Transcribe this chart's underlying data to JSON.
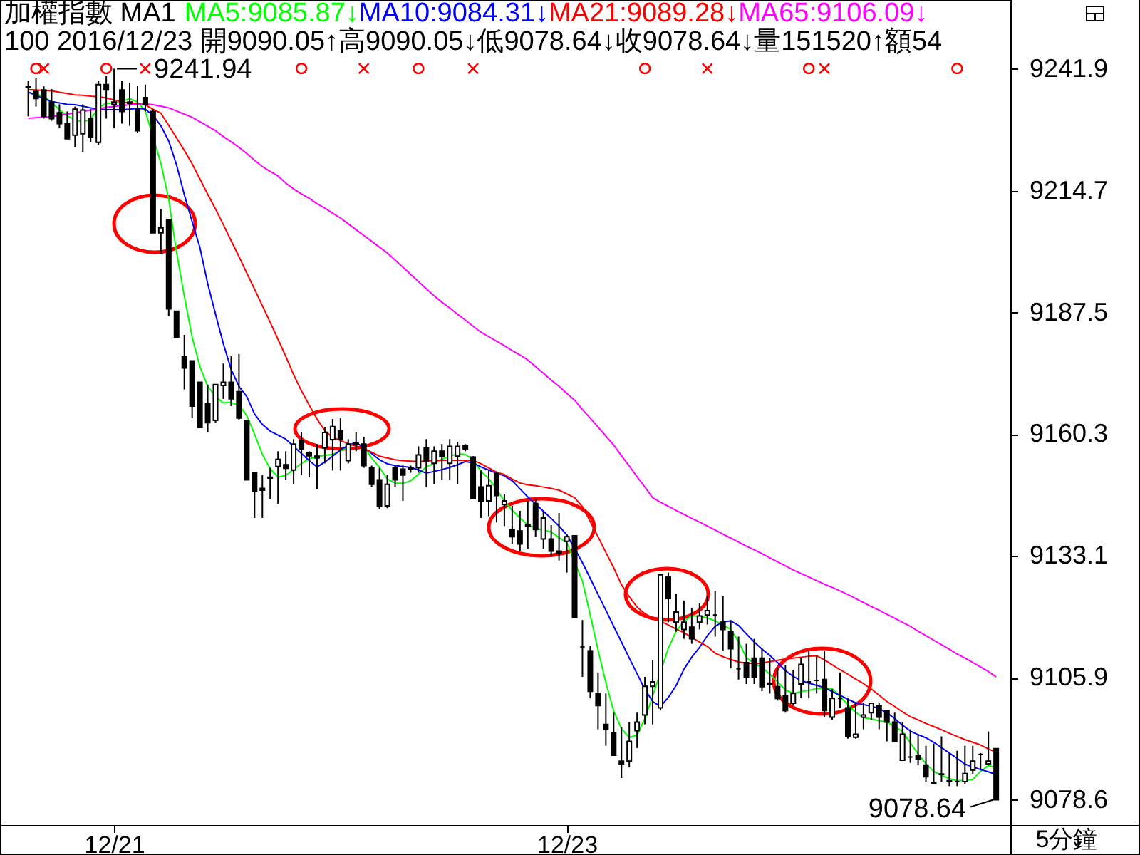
{
  "chart_data": {
    "type": "candlestick",
    "title": "加權指數 MA1",
    "subtitle": "100 2016/12/23 開9090.05↑高9090.05↓低9078.64↓收9078.64↓量151520↑額54",
    "xlabel": "5分鐘",
    "categories": [
      null,
      null,
      null,
      null,
      null,
      null,
      null,
      null,
      null,
      null,
      null,
      "12/21",
      null,
      null,
      null,
      null,
      null,
      null,
      null,
      null,
      null,
      null,
      null,
      null,
      null,
      null,
      null,
      null,
      null,
      null,
      null,
      null,
      null,
      null,
      null,
      null,
      null,
      null,
      null,
      null,
      null,
      null,
      null,
      null,
      null,
      null,
      null,
      null,
      null,
      null,
      null,
      null,
      null,
      null,
      null,
      null,
      null,
      null,
      null,
      null,
      null,
      null,
      null,
      null,
      null,
      null,
      null,
      null,
      null,
      "12/23",
      null,
      null,
      null,
      null,
      null,
      null,
      null,
      null,
      null,
      null,
      null,
      null,
      null,
      null,
      null,
      null,
      null,
      null,
      null,
      null,
      null,
      null,
      null,
      null,
      null,
      null,
      null,
      null,
      null,
      null,
      null,
      null,
      null,
      null,
      null,
      null,
      null,
      null,
      null,
      null,
      null,
      null,
      null,
      null,
      null,
      null,
      null,
      null,
      null,
      null,
      null,
      null,
      null,
      null,
      null
    ],
    "color": "#000000",
    "ohlc": [
      [
        9238.0,
        9239.3,
        9231.3,
        9237.8
      ],
      [
        9236.9,
        9239.8,
        9233.5,
        9235.3
      ],
      [
        9237.2,
        9238.0,
        9230.8,
        9231.3
      ],
      [
        9234.5,
        9237.4,
        9230.3,
        9230.8
      ],
      [
        9232.1,
        9234.0,
        9228.7,
        9229.7
      ],
      [
        9229.7,
        9232.4,
        9226.3,
        9226.3
      ],
      [
        9227.1,
        9233.5,
        9224.4,
        9232.9
      ],
      [
        9227.4,
        9234.0,
        9223.4,
        9232.7
      ],
      [
        9230.8,
        9232.9,
        9225.5,
        9226.6
      ],
      [
        9225.5,
        9239.3,
        9225.0,
        9238.4
      ],
      [
        9238.4,
        9240.3,
        9230.8,
        9237.2
      ],
      [
        9234.0,
        9241.94,
        9228.7,
        9234.5
      ],
      [
        9237.2,
        9239.3,
        9229.7,
        9232.4
      ],
      [
        9234.5,
        9238.8,
        9229.2,
        9234.2
      ],
      [
        9232.9,
        9238.2,
        9227.6,
        9228.1
      ],
      [
        9235.5,
        9238.4,
        9232.4,
        9234.0
      ],
      [
        9232.4,
        9232.9,
        9205.3,
        9205.3
      ],
      [
        9205.3,
        9210.6,
        9200.5,
        9206.4
      ],
      [
        9208.3,
        9208.3,
        9186.7,
        9188.3
      ],
      [
        9187.8,
        9187.8,
        9182.0,
        9182.0
      ],
      [
        9177.7,
        9182.5,
        9170.3,
        9175.1
      ],
      [
        9176.7,
        9176.7,
        9163.9,
        9166.6
      ],
      [
        9171.9,
        9171.9,
        9161.8,
        9161.8
      ],
      [
        9167.1,
        9171.4,
        9160.7,
        9162.9
      ],
      [
        9163.4,
        9171.4,
        9162.9,
        9171.4
      ],
      [
        9171.2,
        9176.1,
        9168.2,
        9171.9
      ],
      [
        9171.9,
        9177.7,
        9166.6,
        9168.2
      ],
      [
        9169.8,
        9178.2,
        9163.4,
        9163.9
      ],
      [
        9163.4,
        9163.4,
        9150.1,
        9150.1
      ],
      [
        9151.7,
        9151.7,
        9141.6,
        9147.5
      ],
      [
        9148.2,
        9151.2,
        9141.6,
        9147.8
      ],
      [
        9150.7,
        9152.8,
        9145.9,
        9150.5
      ],
      [
        9153.1,
        9156.5,
        9144.8,
        9154.7
      ],
      [
        9153.5,
        9156.5,
        9150.1,
        9152.7
      ],
      [
        9152.3,
        9159.2,
        9149.1,
        9158.1
      ],
      [
        9158.8,
        9160.7,
        9151.2,
        9157.0
      ],
      [
        9156.2,
        9156.5,
        9150.7,
        9155.5
      ],
      [
        9155.4,
        9158.1,
        9148.0,
        9155.0
      ],
      [
        9157.3,
        9161.8,
        9153.8,
        9160.7
      ],
      [
        9159.1,
        9163.7,
        9152.2,
        9162.0
      ],
      [
        9161.1,
        9163.9,
        9152.2,
        9159.1
      ],
      [
        9154.4,
        9159.2,
        9153.8,
        9158.1
      ],
      [
        9158.1,
        9160.7,
        9156.5,
        9158.4
      ],
      [
        9158.1,
        9159.7,
        9152.8,
        9153.3
      ],
      [
        9152.8,
        9153.3,
        9148.5,
        9149.1
      ],
      [
        9150.1,
        9152.8,
        9143.5,
        9144.3
      ],
      [
        9144.3,
        9151.2,
        9143.8,
        9149.1
      ],
      [
        9152.8,
        9153.3,
        9148.5,
        9150.1
      ],
      [
        9152.5,
        9153.3,
        9145.4,
        9151.2
      ],
      [
        9152.8,
        9153.3,
        9151.7,
        9152.5
      ],
      [
        9152.8,
        9157.6,
        9151.7,
        9155.7
      ],
      [
        9157.2,
        9159.2,
        9148.5,
        9154.4
      ],
      [
        9153.8,
        9157.6,
        9149.1,
        9156.5
      ],
      [
        9156.5,
        9158.1,
        9150.1,
        9155.4
      ],
      [
        9153.8,
        9159.2,
        9150.1,
        9157.6
      ],
      [
        9155.4,
        9158.6,
        9149.1,
        9157.6
      ],
      [
        9157.8,
        9158.1,
        9156.5,
        9157.0
      ],
      [
        9155.2,
        9155.4,
        9145.9,
        9145.9
      ],
      [
        9148.5,
        9152.2,
        9141.6,
        9145.4
      ],
      [
        9145.4,
        9152.2,
        9142.0,
        9148.8
      ],
      [
        9151.5,
        9152.0,
        9140.6,
        9146.6
      ],
      [
        9144.6,
        9147.0,
        9139.8,
        9145.4
      ],
      [
        9139.0,
        9144.3,
        9135.8,
        9137.4
      ],
      [
        9138.7,
        9143.2,
        9134.2,
        9135.8
      ],
      [
        9140.1,
        9145.4,
        9134.7,
        9139.7
      ],
      [
        9144.8,
        9145.9,
        9137.4,
        9139.0
      ],
      [
        9136.9,
        9143.2,
        9134.7,
        9141.6
      ],
      [
        9136.9,
        9140.0,
        9133.1,
        9134.2
      ],
      [
        9134.2,
        9142.7,
        9132.1,
        9133.7
      ],
      [
        9136.4,
        9137.9,
        9129.4,
        9137.4
      ],
      [
        9137.6,
        9137.6,
        9119.3,
        9119.3
      ],
      [
        9112.8,
        9118.8,
        9106.1,
        9112.8
      ],
      [
        9111.9,
        9113.0,
        9101.3,
        9102.9
      ],
      [
        9102.4,
        9107.1,
        9094.4,
        9099.7
      ],
      [
        9095.5,
        9102.4,
        9090.7,
        9094.4
      ],
      [
        9093.7,
        9098.1,
        9088.6,
        9088.6
      ],
      [
        9087.3,
        9094.9,
        9083.5,
        9086.7
      ],
      [
        9087.3,
        9096.0,
        9085.9,
        9091.7
      ],
      [
        9094.1,
        9098.1,
        9090.2,
        9096.0
      ],
      [
        9097.6,
        9106.1,
        9095.5,
        9104.0
      ],
      [
        9104.0,
        9109.8,
        9095.5,
        9105.0
      ],
      [
        9099.2,
        9128.9,
        9098.6,
        9128.9
      ],
      [
        9128.4,
        9129.4,
        9118.3,
        9123.6
      ],
      [
        9118.3,
        9124.7,
        9116.2,
        9120.6
      ],
      [
        9116.7,
        9123.1,
        9114.6,
        9118.3
      ],
      [
        9117.2,
        9121.5,
        9113.5,
        9114.6
      ],
      [
        9118.3,
        9122.5,
        9116.7,
        9119.7
      ],
      [
        9119.9,
        9124.1,
        9117.8,
        9120.9
      ],
      [
        9119.9,
        9125.2,
        9115.1,
        9119.9
      ],
      [
        9118.3,
        9124.1,
        9112.0,
        9116.7
      ],
      [
        9116.2,
        9118.8,
        9108.0,
        9112.4
      ],
      [
        9107.9,
        9115.1,
        9105.5,
        9107.9
      ],
      [
        9109.3,
        9113.5,
        9104.5,
        9106.1
      ],
      [
        9110.3,
        9114.6,
        9104.5,
        9106.1
      ],
      [
        9110.3,
        9112.4,
        9102.9,
        9103.9
      ],
      [
        9104.7,
        9110.3,
        9102.4,
        9104.5
      ],
      [
        9103.9,
        9108.2,
        9100.8,
        9101.3
      ],
      [
        9101.8,
        9108.7,
        9098.1,
        9098.6
      ],
      [
        9100.2,
        9107.7,
        9099.7,
        9102.4
      ],
      [
        9104.5,
        9110.3,
        9101.3,
        9108.9
      ],
      [
        9105.0,
        9111.9,
        9101.3,
        9105.0
      ],
      [
        9105.3,
        9110.8,
        9102.4,
        9105.3
      ],
      [
        9105.5,
        9111.9,
        9097.1,
        9098.6
      ],
      [
        9097.1,
        9103.4,
        9096.5,
        9101.3
      ],
      [
        9101.3,
        9107.1,
        9099.2,
        9101.3
      ],
      [
        9099.2,
        9101.3,
        9092.3,
        9092.8
      ],
      [
        9092.6,
        9100.2,
        9092.3,
        9093.3
      ],
      [
        9097.1,
        9100.2,
        9094.4,
        9097.6
      ],
      [
        9098.1,
        9100.2,
        9096.5,
        9100.2
      ],
      [
        9099.7,
        9100.2,
        9094.4,
        9097.1
      ],
      [
        9098.6,
        9098.6,
        9091.7,
        9096.0
      ],
      [
        9096.0,
        9098.1,
        9091.7,
        9091.7
      ],
      [
        9087.5,
        9096.0,
        9087.3,
        9093.3
      ],
      [
        9088.2,
        9094.4,
        9086.9,
        9088.2
      ],
      [
        9088.6,
        9093.3,
        9086.4,
        9087.7
      ],
      [
        9086.4,
        9090.7,
        9082.7,
        9083.8
      ],
      [
        9082.5,
        9091.2,
        9082.2,
        9082.4
      ],
      [
        9084.4,
        9092.8,
        9082.7,
        9084.3
      ],
      [
        9082.9,
        9089.1,
        9081.7,
        9082.7
      ],
      [
        9082.7,
        9089.6,
        9081.7,
        9082.7
      ],
      [
        9082.7,
        9090.7,
        9082.2,
        9084.5
      ],
      [
        9085.3,
        9090.7,
        9084.3,
        9087.3
      ],
      [
        9088.8,
        9089.1,
        9085.4,
        9088.8
      ],
      [
        9086.7,
        9093.9,
        9086.4,
        9087.3
      ],
      [
        9090.05,
        9090.05,
        9078.64,
        9078.64
      ]
    ],
    "series": [
      {
        "name": "MA5:9085.87↓",
        "type": "line",
        "color": "#00ff00",
        "values": [
          9236.7,
          9236.3,
          9235.8,
          9234.4,
          9232.8,
          9231.4,
          9230.5,
          9230.1,
          9230.6,
          9233.2,
          9234.2,
          9234.3,
          9234.6,
          9235.3,
          9234.5,
          9232.5,
          null,
          9220.8,
          9212.8,
          9201.0,
          9191.1,
          9182.0,
          9175.4,
          9171.0,
          9168.7,
          9167.3,
          9167.4,
          9166.8,
          9164.5,
          9160.3,
          9155.8,
          9152.6,
          9150.7,
          9151.1,
          9152.4,
          9153.8,
          9154.8,
          9155.3,
          9155.6,
          9155.8,
          9156.5,
          9157.4,
          9158.2,
          9157.6,
          9155.0,
          9152.9,
          9150.3,
          9149.4,
          9149.3,
          9149.9,
          9151.4,
          9153.0,
          9153.8,
          9154.7,
          9155.4,
          9155.9,
          9155.8,
          9154.6,
          9152.0,
          9150.4,
          9148.0,
          9145.4,
          9143.3,
          9141.6,
          9140.1,
          9139.3,
          9138.9,
          9138.5,
          9137.2,
          9136.1,
          null,
          9127.5,
          9119.9,
          9112.1,
          9104.8,
          9098.5,
          9094.5,
          9092.6,
          9093.1,
          9096.8,
          9101.8,
          null,
          9112.5,
          9116.3,
          9118.5,
          9119.8,
          9119.6,
          9119.3,
          9118.6,
          9117.7,
          9116.7,
          9114.0,
          9110.4,
          9109.1,
          9108.2,
          9106.7,
          9105.0,
          9103.2,
          9102.4,
          9102.8,
          9103.1,
          9103.5,
          9103.5,
          9103.4,
          9101.7,
          9099.9,
          9098.2,
          9097.0,
          9096.7,
          9096.3,
          9096.0,
          9095.0,
          9093.9,
          9091.4,
          9088.9,
          9086.7,
          9085.0,
          9084.1,
          9083.4,
          9082.9,
          9083.0,
          9083.2,
          9085.0,
          9086.3,
          9085.87
        ]
      },
      {
        "name": "MA10:9084.31↓",
        "type": "line",
        "color": "#0000ff",
        "values": [
          9236.7,
          9236.0,
          9235.3,
          9234.6,
          9234.3,
          9234.0,
          9233.9,
          9233.6,
          9233.2,
          9233.0,
          9232.8,
          9232.8,
          9232.8,
          9232.9,
          9233.1,
          9232.9,
          9231.5,
          9229.2,
          9225.8,
          9220.5,
          9213.8,
          9207.8,
          9202.0,
          9193.9,
          9187.1,
          9180.5,
          9174.8,
          9171.0,
          9168.7,
          9164.8,
          9162.5,
          9161.0,
          9160.1,
          9159.2,
          9157.6,
          9156.0,
          9154.4,
          9153.0,
          9154.1,
          9155.4,
          9156.8,
          9157.8,
          9158.5,
          9157.3,
          9156.0,
          9154.6,
          9153.7,
          9153.3,
          9153.1,
          9152.9,
          9152.3,
          9151.6,
          9152.0,
          9152.4,
          9152.9,
          9153.5,
          9154.2,
          9153.9,
          9153.0,
          9152.3,
          9151.6,
          9151.0,
          9149.9,
          9148.1,
          9146.3,
          9144.7,
          9143.1,
          9141.5,
          9139.8,
          9137.8,
          9134.8,
          9131.6,
          9128.1,
          9124.5,
          9121.0,
          9117.4,
          9113.9,
          9110.3,
          9106.8,
          9103.3,
          9100.6,
          9099.5,
          9101.5,
          9104.2,
          9107.8,
          9110.5,
          9112.7,
          9115.3,
          9117.4,
          9118.4,
          9118.6,
          9117.6,
          9115.7,
          9113.9,
          9112.3,
          9110.9,
          9109.3,
          9107.5,
          9106.2,
          9105.3,
          9104.7,
          9104.2,
          9103.7,
          9102.8,
          9102.0,
          9101.1,
          9100.3,
          9099.9,
          9099.6,
          9099.0,
          9098.1,
          9096.8,
          9095.3,
          9094.0,
          9093.2,
          9092.5,
          9091.5,
          9090.3,
          9089.1,
          9087.9,
          9086.6,
          9086.0,
          9085.4,
          9084.9,
          9084.31
        ]
      },
      {
        "name": "MA21:9089.28↓",
        "type": "line",
        "color": "#ff0000",
        "values": [
          9237.3,
          9237.2,
          9237.1,
          9237.0,
          9236.7,
          9236.4,
          9236.1,
          9236.0,
          9235.8,
          9235.7,
          9235.4,
          9235.0,
          9234.5,
          9234.3,
          9234.2,
          9233.9,
          9232.9,
          9232.0,
          9229.3,
          9226.5,
          9223.7,
          9220.7,
          9217.3,
          9213.9,
          9210.6,
          9207.1,
          9203.5,
          9200.0,
          9196.3,
          9192.7,
          9189.0,
          9185.3,
          9181.5,
          9177.7,
          9173.6,
          9170.0,
          9166.8,
          9163.7,
          9161.1,
          9159.6,
          9158.9,
          9158.2,
          9157.7,
          9157.1,
          9156.3,
          9155.4,
          9155.0,
          9154.6,
          9154.4,
          9154.3,
          9154.2,
          9154.3,
          9154.5,
          9154.5,
          9154.5,
          9154.5,
          9154.5,
          9154.5,
          9153.7,
          9152.8,
          9151.8,
          9151.3,
          9150.3,
          9149.4,
          9149.0,
          9148.8,
          9148.5,
          9148.2,
          9147.8,
          9147.0,
          9146.1,
          9144.1,
          9140.8,
          9137.4,
          9133.9,
          9130.5,
          9126.7,
          9124.0,
          9121.7,
          9120.2,
          9119.3,
          9118.5,
          9117.7,
          9116.8,
          9116.0,
          9114.9,
          9113.9,
          9112.9,
          9111.4,
          9110.6,
          9110.0,
          9109.4,
          9109.2,
          9109.0,
          9109.2,
          9109.5,
          9109.8,
          9110.1,
          9110.3,
          9110.5,
          9110.7,
          9110.8,
          9109.9,
          9108.8,
          9107.7,
          9106.7,
          9105.6,
          9104.6,
          9103.4,
          9102.0,
          9100.6,
          9099.5,
          9098.3,
          9097.2,
          9096.5,
          9095.7,
          9095.0,
          9094.3,
          9093.5,
          9092.8,
          9092.1,
          9091.5,
          9090.9,
          9090.0,
          9089.28
        ]
      },
      {
        "name": "MA65:9106.09↓",
        "type": "line",
        "color": "#ff00ff",
        "values": [
          9230.9,
          9231.0,
          9231.1,
          9231.2,
          9231.5,
          9231.8,
          9232.1,
          9232.4,
          9232.7,
          9233.0,
          9233.3,
          9233.5,
          9233.7,
          9233.9,
          9234.0,
          9234.1,
          9233.9,
          9233.6,
          9233.2,
          9232.5,
          9231.8,
          9231.1,
          9230.1,
          9229.1,
          9228.1,
          9226.8,
          9225.6,
          9224.4,
          9223.0,
          9221.5,
          9220.1,
          9219.0,
          9218.0,
          9216.4,
          9215.1,
          9214.0,
          9213.0,
          9211.8,
          9210.8,
          9209.7,
          9208.6,
          9207.3,
          9206.0,
          9204.7,
          9203.4,
          9202.1,
          9200.8,
          9199.2,
          9197.6,
          9196.0,
          9194.4,
          9192.8,
          9191.2,
          9189.8,
          9188.5,
          9187.1,
          9185.8,
          9184.4,
          9183.1,
          9182.1,
          9181.1,
          9180.1,
          9179.0,
          9178.0,
          9176.9,
          9175.4,
          9173.9,
          9172.4,
          9171.0,
          9169.4,
          9167.9,
          9165.8,
          9163.9,
          9161.9,
          9159.9,
          9157.9,
          9155.5,
          9153.2,
          9150.8,
          9148.5,
          9146.1,
          9145.1,
          9144.2,
          9143.3,
          9142.4,
          9141.5,
          9140.7,
          9139.8,
          9138.9,
          9138.0,
          9137.1,
          9136.2,
          9135.3,
          9134.5,
          9133.6,
          9132.7,
          9131.8,
          9130.9,
          9130.0,
          9129.2,
          9128.4,
          9127.6,
          9126.8,
          9126.1,
          9125.3,
          9124.5,
          9123.6,
          9122.7,
          9121.8,
          9121.0,
          9120.1,
          9119.2,
          9118.3,
          9117.4,
          9116.3,
          9115.3,
          9114.3,
          9113.3,
          9112.3,
          9111.2,
          9110.3,
          9109.3,
          9108.3,
          9107.3,
          9106.09
        ]
      },
      {
        "type": "scatter",
        "marker": "circle",
        "color": "#ff0000",
        "values": [
          null,
          9242,
          null,
          null,
          null,
          null,
          null,
          null,
          null,
          null,
          9242,
          null,
          null,
          null,
          null,
          null,
          null,
          null,
          null,
          null,
          null,
          null,
          null,
          null,
          null,
          null,
          null,
          null,
          null,
          null,
          null,
          null,
          null,
          null,
          null,
          9242,
          null,
          null,
          null,
          null,
          null,
          null,
          null,
          null,
          null,
          null,
          null,
          null,
          null,
          null,
          9242,
          null,
          null,
          null,
          null,
          null,
          null,
          null,
          null,
          null,
          null,
          null,
          null,
          null,
          null,
          null,
          null,
          null,
          null,
          null,
          null,
          null,
          null,
          null,
          null,
          null,
          null,
          null,
          null,
          9242,
          null,
          null,
          null,
          null,
          null,
          null,
          null,
          null,
          null,
          null,
          null,
          null,
          null,
          null,
          null,
          null,
          null,
          null,
          null,
          null,
          9242,
          null,
          null,
          null,
          null,
          null,
          null,
          null,
          null,
          null,
          null,
          null,
          null,
          null,
          null,
          null,
          null,
          null,
          null,
          9242,
          null,
          null,
          null,
          null,
          null
        ]
      },
      {
        "type": "scatter",
        "marker": "cross",
        "color": "#ff0000",
        "values": [
          null,
          null,
          9242,
          null,
          null,
          null,
          null,
          null,
          null,
          null,
          null,
          null,
          null,
          null,
          null,
          9242,
          null,
          null,
          null,
          null,
          null,
          null,
          null,
          null,
          null,
          null,
          null,
          null,
          null,
          null,
          null,
          null,
          null,
          null,
          null,
          null,
          null,
          null,
          null,
          null,
          null,
          null,
          null,
          9242,
          null,
          null,
          null,
          null,
          null,
          null,
          null,
          null,
          null,
          null,
          null,
          null,
          null,
          9242,
          null,
          null,
          null,
          null,
          null,
          null,
          null,
          null,
          null,
          null,
          null,
          null,
          null,
          null,
          null,
          null,
          null,
          null,
          null,
          null,
          null,
          null,
          null,
          null,
          null,
          null,
          null,
          null,
          null,
          9242,
          null,
          null,
          null,
          null,
          null,
          null,
          null,
          null,
          null,
          null,
          null,
          null,
          null,
          null,
          9242,
          null,
          null,
          null,
          null,
          null,
          null,
          null,
          null,
          null,
          null,
          null,
          null,
          null,
          null,
          null,
          null,
          null,
          null,
          null,
          null,
          null,
          null
        ]
      }
    ],
    "ylim": [
      9073.0,
      9257.3
    ],
    "yticks": [
      9241.9,
      9214.7,
      9187.5,
      9160.3,
      9133.1,
      9105.9,
      9078.6
    ],
    "legend": "top left",
    "annotations": [
      "9241.94",
      "9078.64"
    ]
  }
}
